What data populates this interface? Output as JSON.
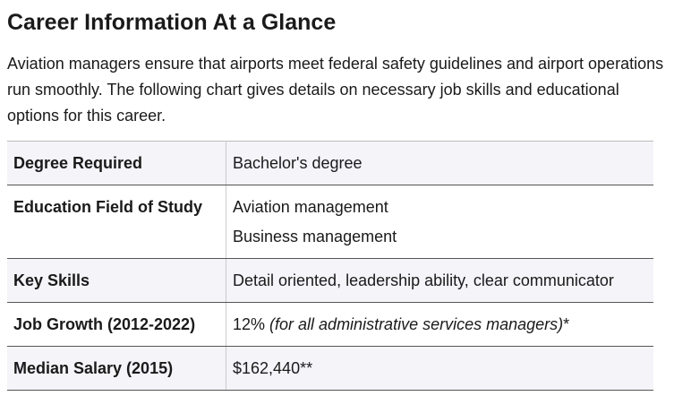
{
  "header": {
    "title": "Career Information At a Glance"
  },
  "intro": "Aviation managers ensure that airports meet federal safety guidelines and airport operations run smoothly. The following chart gives details on necessary job skills and educational options for this career.",
  "table": {
    "rows": [
      {
        "label": "Degree Required",
        "lines": [
          "Bachelor's degree"
        ]
      },
      {
        "label": "Education Field of Study",
        "lines": [
          "Aviation management",
          "Business management"
        ]
      },
      {
        "label": "Key Skills",
        "lines": [
          "Detail oriented, leadership ability, clear communicator"
        ]
      },
      {
        "label": "Job Growth (2012-2022)",
        "value": "12%",
        "note": "(for all administrative services managers)",
        "mark": "*"
      },
      {
        "label": "Median Salary (2015)",
        "lines": [
          "$162,440**"
        ]
      }
    ]
  }
}
